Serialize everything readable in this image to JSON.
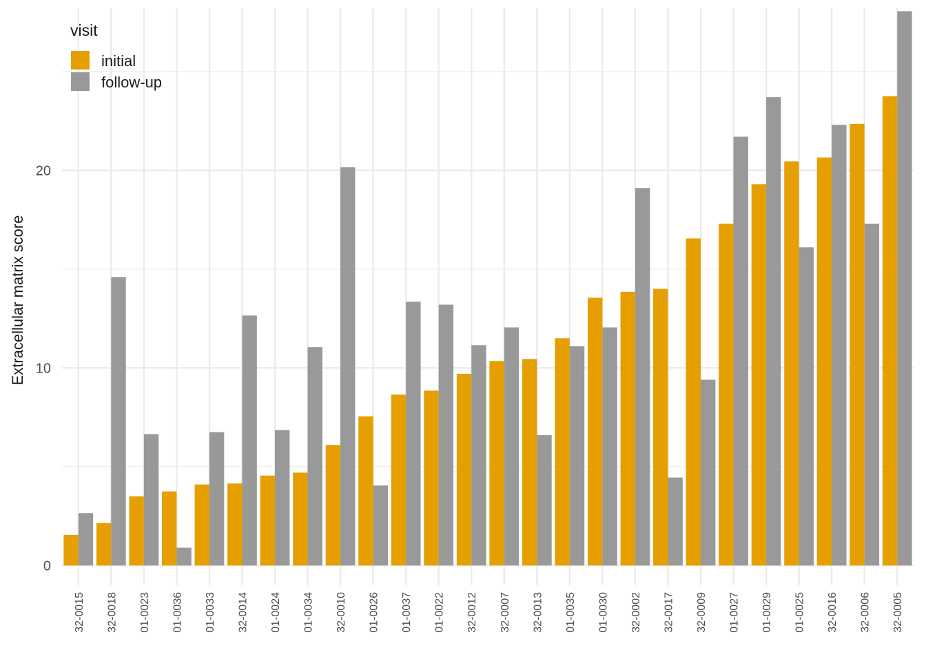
{
  "chart_data": {
    "type": "bar",
    "ylabel": "Extracellular matrix score",
    "xlabel": "",
    "ylim": [
      -1.0,
      28.2
    ],
    "yticks": [
      0,
      10,
      20
    ],
    "minor_yticks": [
      5,
      15,
      25
    ],
    "grid": true,
    "legend": {
      "title": "visit",
      "position": "top-left",
      "entries": [
        "initial",
        "follow-up"
      ]
    },
    "categories": [
      "32-0015",
      "32-0018",
      "01-0023",
      "01-0036",
      "01-0033",
      "32-0014",
      "01-0024",
      "01-0034",
      "32-0010",
      "01-0026",
      "01-0037",
      "01-0022",
      "32-0012",
      "32-0007",
      "32-0013",
      "01-0035",
      "01-0030",
      "32-0002",
      "32-0017",
      "32-0009",
      "01-0027",
      "01-0029",
      "01-0025",
      "32-0016",
      "32-0006",
      "32-0005"
    ],
    "series": [
      {
        "name": "initial",
        "color": "#E69F00",
        "values": [
          1.55,
          2.15,
          3.5,
          3.75,
          4.1,
          4.15,
          4.55,
          4.7,
          6.1,
          7.55,
          8.65,
          8.85,
          9.7,
          10.35,
          10.45,
          11.5,
          13.55,
          13.85,
          14.0,
          16.55,
          17.3,
          19.3,
          20.45,
          20.65,
          22.35,
          23.75
        ]
      },
      {
        "name": "follow-up",
        "color": "#999999",
        "values": [
          2.65,
          14.6,
          6.65,
          0.9,
          6.75,
          12.65,
          6.85,
          11.05,
          20.15,
          4.05,
          13.35,
          13.2,
          11.15,
          12.05,
          6.6,
          11.1,
          12.05,
          19.1,
          4.45,
          9.4,
          21.7,
          23.7,
          16.1,
          22.3,
          17.3,
          28.05
        ]
      }
    ]
  }
}
